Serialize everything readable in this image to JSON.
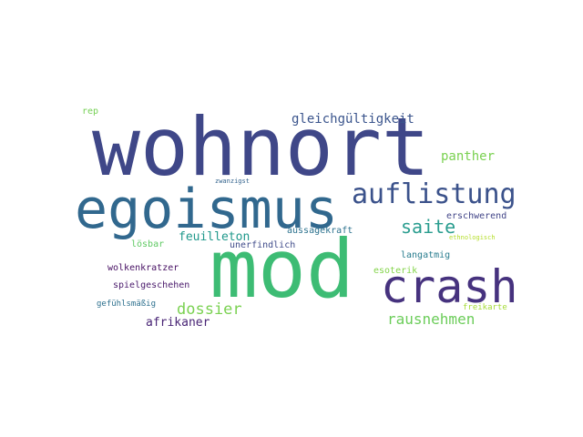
{
  "words": [
    {
      "text": "wohnort",
      "color": "#3f4788"
    },
    {
      "text": "mod",
      "color": "#3dbc74"
    },
    {
      "text": "egoismus",
      "color": "#31688e"
    },
    {
      "text": "crash",
      "color": "#46327e"
    },
    {
      "text": "auflistung",
      "color": "#3b528b"
    },
    {
      "text": "saite",
      "color": "#2a9d8f"
    },
    {
      "text": "dossier",
      "color": "#7ad151"
    },
    {
      "text": "rausnehmen",
      "color": "#6ccd5a"
    },
    {
      "text": "gleichgültigkeit",
      "color": "#3a548c"
    },
    {
      "text": "panther",
      "color": "#7ad151"
    },
    {
      "text": "feuilleton",
      "color": "#1f988b"
    },
    {
      "text": "afrikaner",
      "color": "#482475"
    },
    {
      "text": "rep",
      "color": "#75d054"
    },
    {
      "text": "aussagekraft",
      "color": "#2c728e"
    },
    {
      "text": "erschwerend",
      "color": "#414487"
    },
    {
      "text": "unerfindlich",
      "color": "#3e4a89"
    },
    {
      "text": "lösbar",
      "color": "#5ec962"
    },
    {
      "text": "langatmig",
      "color": "#287c8e"
    },
    {
      "text": "wolkenkratzer",
      "color": "#471063"
    },
    {
      "text": "esoterik",
      "color": "#84d44b"
    },
    {
      "text": "spielgeschehen",
      "color": "#48186a"
    },
    {
      "text": "gefühlsmäßig",
      "color": "#2d708e"
    },
    {
      "text": "freikarte",
      "color": "#a5db36"
    },
    {
      "text": "zwanzigst",
      "color": "#33638d"
    },
    {
      "text": "ethnologisch",
      "color": "#b5de2b"
    }
  ]
}
